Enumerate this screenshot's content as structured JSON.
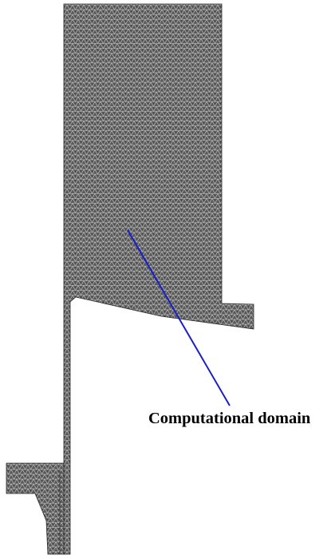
{
  "annotation": {
    "label": "Computational domain"
  },
  "colors": {
    "mesh_fill": "#5a5a5a",
    "mesh_line": "#d4d4d4",
    "leader_line": "#1a1fc8",
    "text": "#000000",
    "background": "#ffffff"
  }
}
